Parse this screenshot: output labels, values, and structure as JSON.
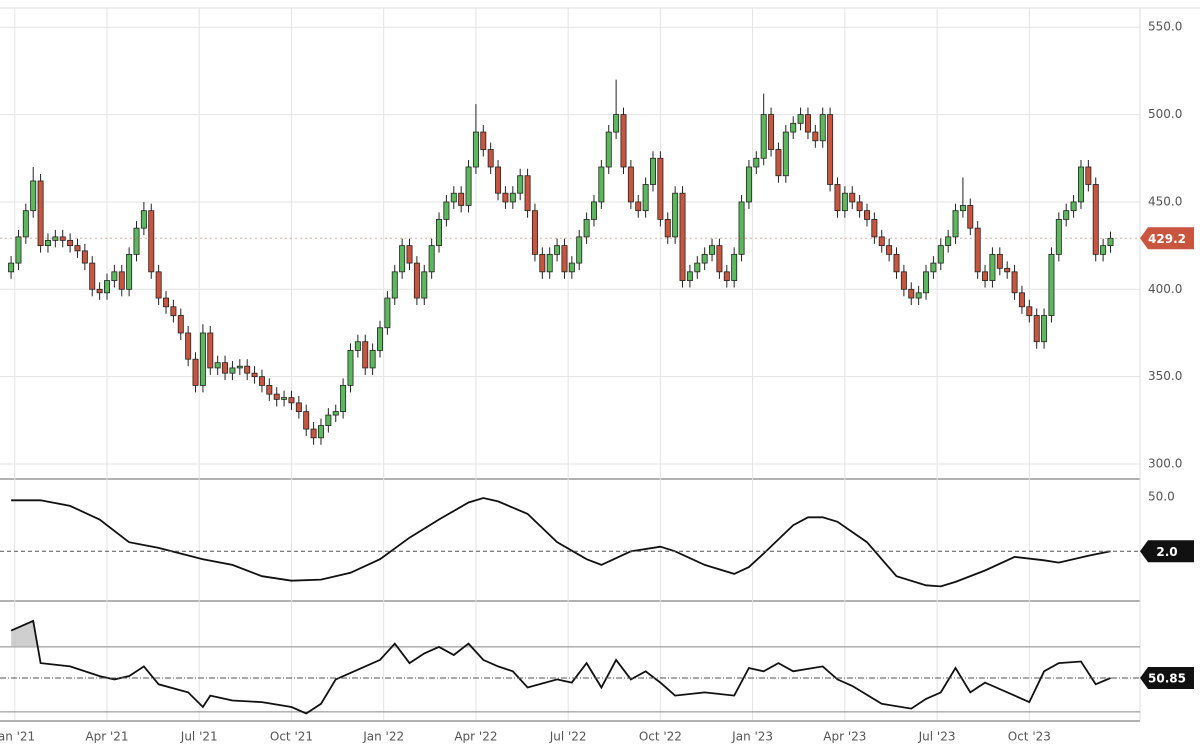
{
  "chart_data": [
    {
      "type": "candlestick",
      "up_color": "#5cb85c",
      "down_color": "#c9553f",
      "grid": true,
      "ylim": [
        292,
        561
      ],
      "yticks": [
        {
          "value": 300,
          "label": "300.0"
        },
        {
          "value": 350,
          "label": "350.0"
        },
        {
          "value": 400,
          "label": "400.0"
        },
        {
          "value": 450,
          "label": "450.0"
        },
        {
          "value": 500,
          "label": "500.0"
        },
        {
          "value": 550,
          "label": "550.0"
        }
      ],
      "xlim": [
        -1.5,
        153
      ],
      "xticks": [
        {
          "value": 0.5,
          "label": "Jan '21"
        },
        {
          "value": 13,
          "label": "Apr '21"
        },
        {
          "value": 25.5,
          "label": "Jul '21"
        },
        {
          "value": 38,
          "label": "Oct '21"
        },
        {
          "value": 50.5,
          "label": "Jan '22"
        },
        {
          "value": 63,
          "label": "Apr '22"
        },
        {
          "value": 75.5,
          "label": "Jul '22"
        },
        {
          "value": 88,
          "label": "Oct '22"
        },
        {
          "value": 100.5,
          "label": "Jan '23"
        },
        {
          "value": 113,
          "label": "Apr '23"
        },
        {
          "value": 125.5,
          "label": "Jul '23"
        },
        {
          "value": 138,
          "label": "Oct '23"
        }
      ],
      "candles": {
        "open": [
          410,
          415,
          430,
          445,
          462,
          425,
          428,
          430,
          428,
          425,
          422,
          415,
          400,
          398,
          405,
          410,
          400,
          420,
          435,
          445,
          410,
          395,
          390,
          385,
          375,
          360,
          345,
          375,
          355,
          358,
          352,
          355,
          356,
          352,
          350,
          345,
          340,
          337,
          338,
          335,
          330,
          320,
          315,
          322,
          328,
          330,
          345,
          365,
          370,
          355,
          365,
          378,
          395,
          410,
          425,
          415,
          395,
          410,
          425,
          440,
          450,
          455,
          448,
          470,
          490,
          480,
          470,
          455,
          450,
          455,
          465,
          445,
          420,
          410,
          420,
          425,
          410,
          415,
          430,
          440,
          450,
          470,
          490,
          500,
          470,
          450,
          445,
          460,
          475,
          440,
          430,
          455,
          405,
          410,
          415,
          420,
          425,
          410,
          405,
          420,
          450,
          470,
          475,
          500,
          480,
          465,
          490,
          495,
          500,
          490,
          485,
          500,
          460,
          445,
          455,
          450,
          445,
          440,
          430,
          425,
          420,
          410,
          400,
          395,
          398,
          410,
          415,
          425,
          430,
          445,
          448,
          435,
          410,
          405,
          420,
          412,
          410,
          398,
          390,
          385,
          370,
          385,
          420,
          440,
          445,
          450,
          470,
          460,
          420,
          425
        ],
        "high": [
          419,
          434,
          449,
          470,
          466,
          432,
          434,
          434,
          432,
          429,
          426,
          419,
          404,
          409,
          414,
          414,
          424,
          439,
          450,
          449,
          414,
          399,
          394,
          389,
          379,
          364,
          380,
          379,
          362,
          362,
          359,
          360,
          360,
          356,
          354,
          349,
          344,
          342,
          342,
          339,
          334,
          324,
          326,
          332,
          334,
          349,
          369,
          374,
          374,
          369,
          382,
          399,
          414,
          429,
          429,
          419,
          414,
          429,
          444,
          454,
          459,
          459,
          474,
          506,
          494,
          484,
          474,
          459,
          459,
          469,
          469,
          449,
          424,
          424,
          429,
          429,
          419,
          434,
          444,
          454,
          474,
          494,
          520,
          504,
          474,
          454,
          464,
          479,
          479,
          444,
          459,
          459,
          414,
          419,
          424,
          429,
          429,
          414,
          424,
          454,
          474,
          479,
          512,
          504,
          484,
          494,
          499,
          504,
          504,
          494,
          504,
          504,
          464,
          459,
          459,
          454,
          449,
          444,
          434,
          429,
          424,
          414,
          404,
          402,
          414,
          419,
          429,
          434,
          449,
          464,
          452,
          439,
          414,
          424,
          424,
          416,
          414,
          402,
          394,
          389,
          389,
          424,
          444,
          449,
          454,
          474,
          474,
          464,
          429,
          433
        ],
        "low": [
          406,
          411,
          426,
          441,
          421,
          421,
          424,
          424,
          421,
          418,
          411,
          396,
          394,
          394,
          401,
          396,
          396,
          416,
          431,
          406,
          391,
          386,
          381,
          371,
          356,
          341,
          341,
          351,
          351,
          348,
          348,
          351,
          348,
          346,
          341,
          336,
          333,
          333,
          331,
          326,
          316,
          311,
          311,
          318,
          324,
          326,
          341,
          361,
          351,
          351,
          361,
          374,
          391,
          406,
          411,
          391,
          391,
          406,
          421,
          436,
          446,
          444,
          444,
          466,
          476,
          466,
          451,
          446,
          446,
          451,
          441,
          416,
          406,
          406,
          416,
          406,
          406,
          411,
          426,
          436,
          446,
          466,
          486,
          466,
          446,
          441,
          441,
          456,
          436,
          426,
          426,
          401,
          401,
          406,
          411,
          416,
          406,
          401,
          401,
          416,
          446,
          466,
          471,
          476,
          461,
          461,
          486,
          491,
          486,
          481,
          481,
          456,
          441,
          441,
          446,
          441,
          436,
          426,
          421,
          416,
          406,
          396,
          391,
          391,
          394,
          406,
          411,
          421,
          426,
          441,
          431,
          406,
          401,
          401,
          408,
          406,
          394,
          386,
          381,
          366,
          366,
          381,
          416,
          436,
          441,
          446,
          456,
          416,
          416,
          421
        ],
        "close": [
          415,
          430,
          445,
          462,
          425,
          428,
          430,
          428,
          425,
          422,
          415,
          400,
          398,
          405,
          410,
          400,
          420,
          435,
          445,
          410,
          395,
          390,
          385,
          375,
          360,
          345,
          375,
          355,
          358,
          352,
          355,
          356,
          352,
          350,
          345,
          340,
          337,
          338,
          335,
          330,
          320,
          315,
          322,
          328,
          330,
          345,
          365,
          370,
          355,
          365,
          378,
          395,
          410,
          425,
          415,
          395,
          410,
          425,
          440,
          450,
          455,
          448,
          470,
          490,
          480,
          470,
          455,
          450,
          455,
          465,
          445,
          420,
          410,
          420,
          425,
          410,
          415,
          430,
          440,
          450,
          470,
          490,
          500,
          470,
          450,
          445,
          460,
          475,
          440,
          430,
          455,
          405,
          410,
          415,
          420,
          425,
          410,
          405,
          420,
          450,
          470,
          475,
          500,
          480,
          465,
          490,
          495,
          500,
          490,
          485,
          500,
          460,
          445,
          455,
          450,
          445,
          440,
          430,
          425,
          420,
          410,
          400,
          395,
          398,
          410,
          415,
          425,
          430,
          445,
          448,
          435,
          410,
          405,
          420,
          412,
          410,
          398,
          390,
          385,
          370,
          385,
          420,
          440,
          445,
          450,
          470,
          460,
          420,
          425,
          429.2
        ]
      }
    },
    {
      "type": "line",
      "color": "#111111",
      "ylim": [
        -41,
        64
      ],
      "yticks": [
        {
          "value": 50,
          "label": "50.0"
        }
      ],
      "current": {
        "value": 2,
        "label": "2.0"
      },
      "x": [
        0,
        4,
        8,
        12,
        16,
        20,
        26,
        30,
        34,
        38,
        42,
        46,
        50,
        54,
        58,
        62,
        64,
        66,
        70,
        74,
        78,
        80,
        84,
        88,
        90,
        94,
        98,
        100,
        102,
        106,
        108,
        110,
        112,
        116,
        120,
        124,
        126,
        128,
        132,
        136,
        140,
        142,
        146,
        149
      ],
      "values": [
        47,
        47,
        42,
        30,
        10,
        5,
        -5,
        -10,
        -20,
        -24,
        -23,
        -17,
        -5,
        14,
        30,
        45,
        49,
        46,
        35,
        10,
        -5,
        -10,
        2,
        6,
        2,
        -10,
        -18,
        -12,
        0,
        25,
        32,
        32,
        28,
        10,
        -20,
        -28,
        -29,
        -25,
        -15,
        -3,
        -6,
        -8,
        -2,
        2
      ]
    },
    {
      "type": "line",
      "color": "#111111",
      "ylim": [
        25,
        97
      ],
      "levels": [
        70,
        30
      ],
      "current": 50.85,
      "x": [
        0,
        3,
        4,
        8,
        12,
        14,
        16,
        18,
        20,
        24,
        26,
        27,
        30,
        34,
        38,
        40,
        42,
        44,
        48,
        50,
        52,
        54,
        56,
        58,
        60,
        62,
        64,
        66,
        68,
        70,
        74,
        76,
        78,
        80,
        82,
        84,
        86,
        88,
        90,
        94,
        98,
        100,
        102,
        104,
        106,
        110,
        112,
        114,
        118,
        122,
        124,
        126,
        128,
        130,
        132,
        136,
        138,
        140,
        142,
        145,
        147,
        149
      ],
      "values": [
        80,
        86,
        60,
        58,
        52,
        50,
        52,
        58,
        47,
        42,
        33,
        40,
        37,
        36,
        33,
        29,
        35,
        50,
        58,
        62,
        72,
        60,
        66,
        70,
        65,
        72,
        62,
        58,
        55,
        45,
        50,
        48,
        60,
        45,
        62,
        50,
        55,
        48,
        40,
        42,
        40,
        57,
        55,
        60,
        55,
        58,
        50,
        46,
        35,
        32,
        38,
        42,
        57,
        42,
        48,
        40,
        36,
        55,
        60,
        61,
        47,
        50.85
      ]
    }
  ]
}
